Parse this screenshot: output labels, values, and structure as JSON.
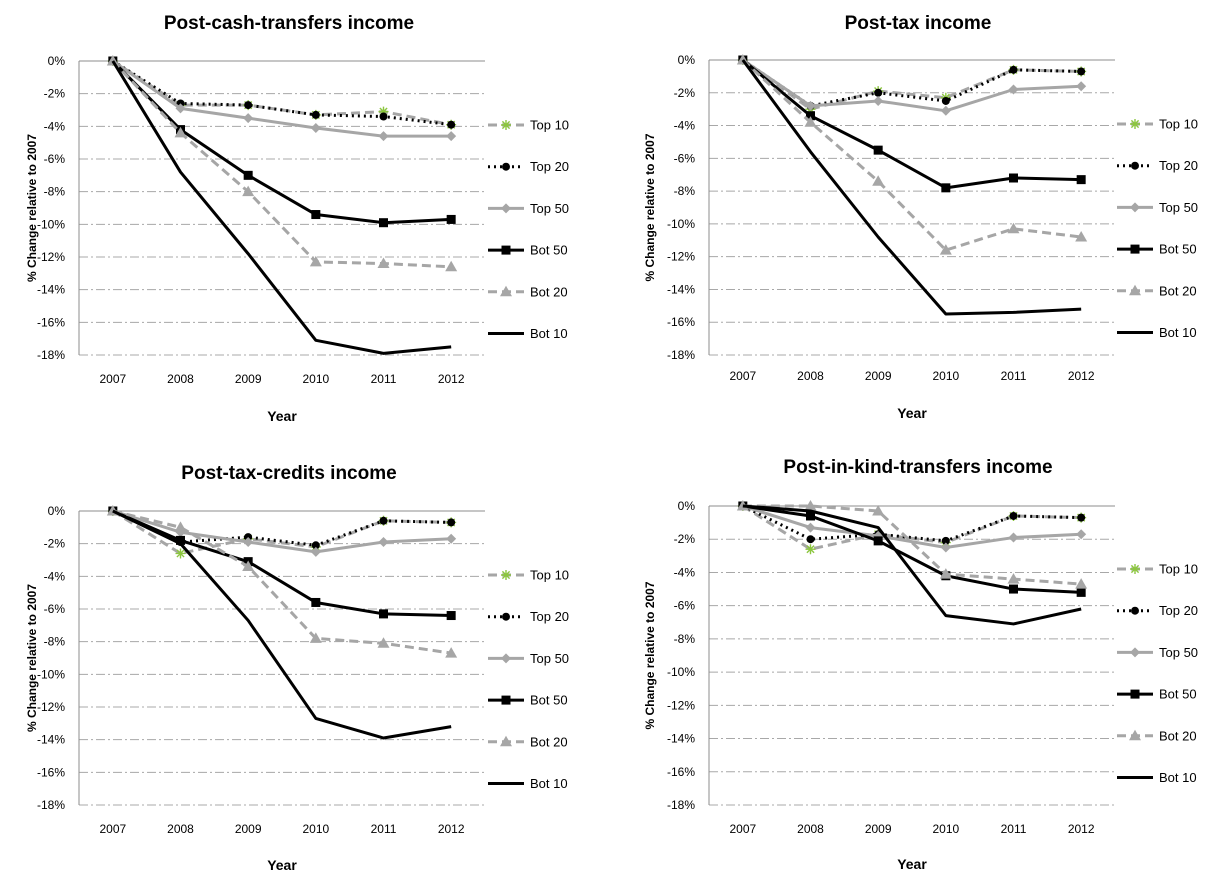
{
  "chart_data": [
    {
      "type": "line",
      "title": "Post-cash-transfers income",
      "xlabel": "Year",
      "ylabel": "% Change relative to 2007",
      "x": [
        "2007",
        "2008",
        "2009",
        "2010",
        "2011",
        "2012"
      ],
      "ylim": [
        -18,
        0
      ],
      "yticks": [
        "0%",
        "-2%",
        "-4%",
        "-6%",
        "-8%",
        "-10%",
        "-12%",
        "-14%",
        "-16%",
        "-18%"
      ],
      "grid": "horizontal dash-dot",
      "legend": "right",
      "series": [
        {
          "name": "Top 10",
          "values": [
            0,
            -2.7,
            -2.7,
            -3.3,
            -3.1,
            -3.9
          ],
          "color": "#a6a6a6",
          "dash": "dashed",
          "marker": "asterisk"
        },
        {
          "name": "Top 20",
          "values": [
            0,
            -2.6,
            -2.7,
            -3.3,
            -3.4,
            -3.9
          ],
          "color": "#000000",
          "dash": "dotted",
          "marker": "circle"
        },
        {
          "name": "Top 50",
          "values": [
            0,
            -2.9,
            -3.5,
            -4.1,
            -4.6,
            -4.6
          ],
          "color": "#a6a6a6",
          "dash": "solid",
          "marker": "diamond"
        },
        {
          "name": "Bot 50",
          "values": [
            0,
            -4.2,
            -7.0,
            -9.4,
            -9.9,
            -9.7
          ],
          "color": "#000000",
          "dash": "solid",
          "marker": "square"
        },
        {
          "name": "Bot 20",
          "values": [
            0,
            -4.4,
            -8.0,
            -12.3,
            -12.4,
            -12.6
          ],
          "color": "#a6a6a6",
          "dash": "dashed",
          "marker": "triangle"
        },
        {
          "name": "Bot 10",
          "values": [
            0,
            -6.8,
            -11.8,
            -17.1,
            -17.9,
            -17.5
          ],
          "color": "#000000",
          "dash": "solid",
          "marker": "none"
        }
      ]
    },
    {
      "type": "line",
      "title": "Post-tax income",
      "xlabel": "Year",
      "ylabel": "% Change relative to 2007",
      "x": [
        "2007",
        "2008",
        "2009",
        "2010",
        "2011",
        "2012"
      ],
      "ylim": [
        -18,
        0
      ],
      "yticks": [
        "0%",
        "-2%",
        "-4%",
        "-6%",
        "-8%",
        "-10%",
        "-12%",
        "-14%",
        "-16%",
        "-18%"
      ],
      "grid": "horizontal dash-dot",
      "legend": "right",
      "series": [
        {
          "name": "Top 10",
          "values": [
            0,
            -3.0,
            -1.9,
            -2.3,
            -0.6,
            -0.7
          ],
          "color": "#a6a6a6",
          "dash": "dashed",
          "marker": "asterisk"
        },
        {
          "name": "Top 20",
          "values": [
            0,
            -2.8,
            -2.0,
            -2.5,
            -0.6,
            -0.7
          ],
          "color": "#000000",
          "dash": "dotted",
          "marker": "circle"
        },
        {
          "name": "Top 50",
          "values": [
            0,
            -2.8,
            -2.5,
            -3.1,
            -1.8,
            -1.6
          ],
          "color": "#a6a6a6",
          "dash": "solid",
          "marker": "diamond"
        },
        {
          "name": "Bot 50",
          "values": [
            0,
            -3.4,
            -5.5,
            -7.8,
            -7.2,
            -7.3
          ],
          "color": "#000000",
          "dash": "solid",
          "marker": "square"
        },
        {
          "name": "Bot 20",
          "values": [
            0,
            -3.8,
            -7.4,
            -11.6,
            -10.3,
            -10.8
          ],
          "color": "#a6a6a6",
          "dash": "dashed",
          "marker": "triangle"
        },
        {
          "name": "Bot 10",
          "values": [
            0,
            -5.6,
            -10.8,
            -15.5,
            -15.4,
            -15.2
          ],
          "color": "#000000",
          "dash": "solid",
          "marker": "none"
        }
      ]
    },
    {
      "type": "line",
      "title": "Post-tax-credits income",
      "xlabel": "Year",
      "ylabel": "% Change relative to 2007",
      "x": [
        "2007",
        "2008",
        "2009",
        "2010",
        "2011",
        "2012"
      ],
      "ylim": [
        -18,
        0
      ],
      "yticks": [
        "0%",
        "-2%",
        "-4%",
        "-6%",
        "-8%",
        "-10%",
        "-12%",
        "-14%",
        "-16%",
        "-18%"
      ],
      "grid": "horizontal dash-dot",
      "legend": "right",
      "series": [
        {
          "name": "Top 10",
          "values": [
            0,
            -2.6,
            -1.7,
            -2.2,
            -0.6,
            -0.7
          ],
          "color": "#a6a6a6",
          "dash": "dashed",
          "marker": "asterisk"
        },
        {
          "name": "Top 20",
          "values": [
            0,
            -1.9,
            -1.6,
            -2.1,
            -0.6,
            -0.7
          ],
          "color": "#000000",
          "dash": "dotted",
          "marker": "circle"
        },
        {
          "name": "Top 50",
          "values": [
            0,
            -1.3,
            -1.9,
            -2.5,
            -1.9,
            -1.7
          ],
          "color": "#a6a6a6",
          "dash": "solid",
          "marker": "diamond"
        },
        {
          "name": "Bot 50",
          "values": [
            0,
            -1.8,
            -3.1,
            -5.6,
            -6.3,
            -6.4
          ],
          "color": "#000000",
          "dash": "solid",
          "marker": "square"
        },
        {
          "name": "Bot 20",
          "values": [
            0,
            -1.0,
            -3.4,
            -7.8,
            -8.1,
            -8.7
          ],
          "color": "#a6a6a6",
          "dash": "dashed",
          "marker": "triangle"
        },
        {
          "name": "Bot 10",
          "values": [
            0,
            -2.0,
            -6.7,
            -12.7,
            -13.9,
            -13.2
          ],
          "color": "#000000",
          "dash": "solid",
          "marker": "none"
        }
      ]
    },
    {
      "type": "line",
      "title": "Post-in-kind-transfers income",
      "xlabel": "Year",
      "ylabel": "% Change relative to 2007",
      "x": [
        "2007",
        "2008",
        "2009",
        "2010",
        "2011",
        "2012"
      ],
      "ylim": [
        -18,
        0
      ],
      "yticks": [
        "0%",
        "-2%",
        "-4%",
        "-6%",
        "-8%",
        "-10%",
        "-12%",
        "-14%",
        "-16%",
        "-18%"
      ],
      "grid": "horizontal dash-dot",
      "legend": "right",
      "series": [
        {
          "name": "Top 10",
          "values": [
            0,
            -2.6,
            -1.7,
            -2.2,
            -0.6,
            -0.7
          ],
          "color": "#a6a6a6",
          "dash": "dashed",
          "marker": "asterisk"
        },
        {
          "name": "Top 20",
          "values": [
            0,
            -2.0,
            -1.7,
            -2.1,
            -0.6,
            -0.7
          ],
          "color": "#000000",
          "dash": "dotted",
          "marker": "circle"
        },
        {
          "name": "Top 50",
          "values": [
            0,
            -1.3,
            -1.8,
            -2.5,
            -1.9,
            -1.7
          ],
          "color": "#a6a6a6",
          "dash": "solid",
          "marker": "diamond"
        },
        {
          "name": "Bot 50",
          "values": [
            0,
            -0.6,
            -2.1,
            -4.2,
            -5.0,
            -5.2
          ],
          "color": "#000000",
          "dash": "solid",
          "marker": "square"
        },
        {
          "name": "Bot 20",
          "values": [
            0,
            0.0,
            -0.3,
            -4.1,
            -4.4,
            -4.7
          ],
          "color": "#a6a6a6",
          "dash": "dashed",
          "marker": "triangle"
        },
        {
          "name": "Bot 10",
          "values": [
            0,
            -0.3,
            -1.3,
            -6.6,
            -7.1,
            -6.2
          ],
          "color": "#000000",
          "dash": "solid",
          "marker": "none"
        }
      ]
    }
  ]
}
